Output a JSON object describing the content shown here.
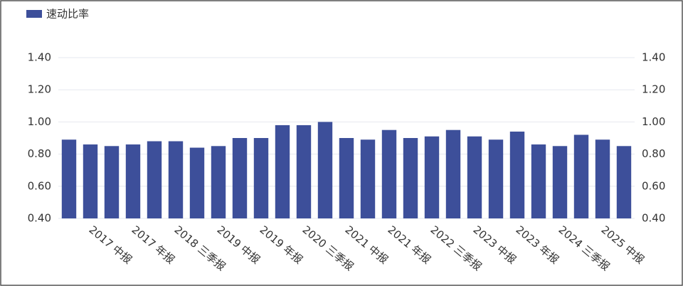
{
  "chart_data": {
    "type": "bar",
    "legend": "速动比率",
    "color": "#3d4f9a",
    "categories": [
      null,
      "2017 中报",
      null,
      "2017 年报",
      null,
      "2018 三季报",
      null,
      "2019 中报",
      null,
      "2019 年报",
      null,
      "2020 三季报",
      null,
      "2021 中报",
      null,
      "2021 年报",
      null,
      "2022 三季报",
      null,
      "2023 中报",
      null,
      "2023 年报",
      null,
      "2024 三季报",
      null,
      "2025 中报",
      null
    ],
    "values": [
      0.89,
      0.86,
      0.85,
      0.86,
      0.88,
      0.88,
      0.84,
      0.85,
      0.9,
      0.9,
      0.98,
      0.98,
      1.0,
      0.9,
      0.89,
      0.95,
      0.9,
      0.91,
      0.95,
      0.91,
      0.89,
      0.94,
      0.86,
      0.85,
      0.92,
      0.89,
      0.85
    ],
    "ylim": [
      0.4,
      1.4
    ],
    "yticks": [
      {
        "value": 0.4,
        "label": "0.40"
      },
      {
        "value": 0.6,
        "label": "0.60"
      },
      {
        "value": 0.8,
        "label": "0.80"
      },
      {
        "value": 1.0,
        "label": "1.00"
      },
      {
        "value": 1.2,
        "label": "1.20"
      },
      {
        "value": 1.4,
        "label": "1.40"
      }
    ],
    "y2lim": [
      0.4,
      1.4
    ],
    "y2ticks": [
      {
        "value": 0.4,
        "label": "0.40"
      },
      {
        "value": 0.6,
        "label": "0.60"
      },
      {
        "value": 0.8,
        "label": "0.80"
      },
      {
        "value": 1.0,
        "label": "1.00"
      },
      {
        "value": 1.2,
        "label": "1.20"
      },
      {
        "value": 1.4,
        "label": "1.40"
      }
    ],
    "grid": true
  }
}
